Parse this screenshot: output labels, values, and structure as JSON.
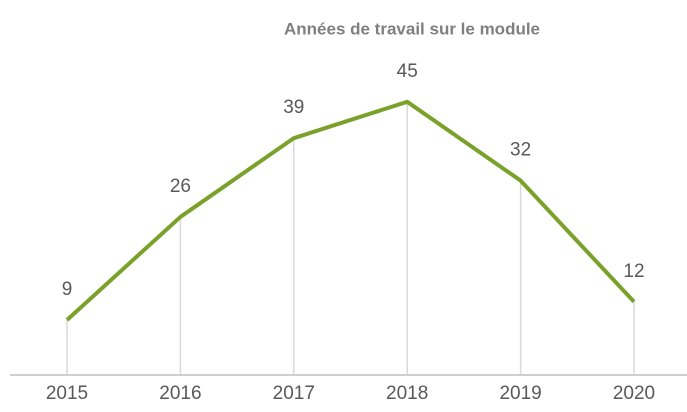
{
  "chart_data": {
    "type": "line",
    "title": "Années de travail sur le module",
    "categories": [
      "2015",
      "2016",
      "2017",
      "2018",
      "2019",
      "2020"
    ],
    "values": [
      9,
      26,
      39,
      45,
      32,
      12
    ],
    "color": "#7aa12a",
    "ylim": [
      0,
      50
    ],
    "drop_lines": true
  }
}
